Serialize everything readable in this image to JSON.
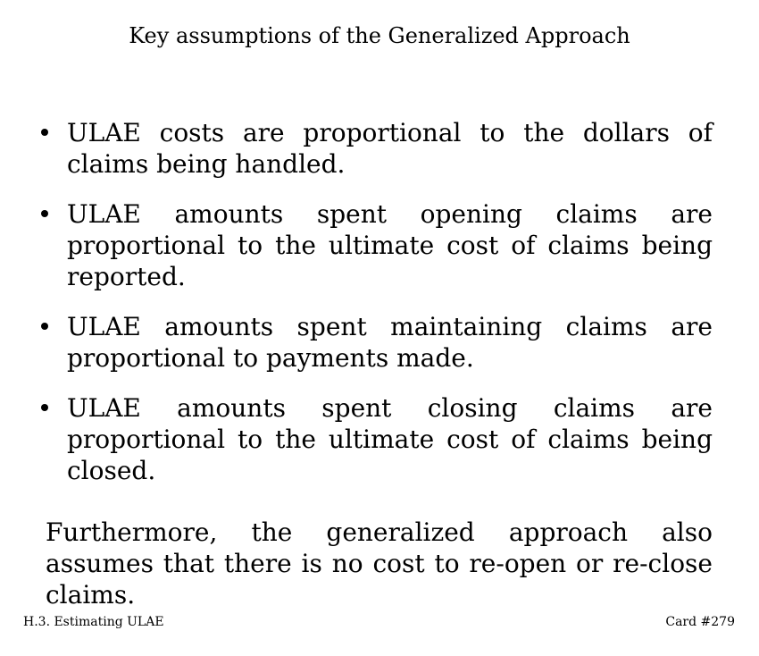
{
  "title": "Key assumptions of the Generalized Approach",
  "bullets": [
    "ULAE costs are proportional to the dollars of claims being handled.",
    "ULAE amounts spent opening claims are proportional to the ultimate cost of claims being reported.",
    "ULAE amounts spent maintaining claims are proportional to payments made.",
    "ULAE amounts spent closing claims are proportional to the ultimate cost of claims being closed."
  ],
  "paragraph": "Furthermore, the generalized approach also assumes that there is no cost to re-open or re-close claims.",
  "footer": {
    "section": "H.3. Estimating ULAE",
    "card": "Card #279"
  }
}
